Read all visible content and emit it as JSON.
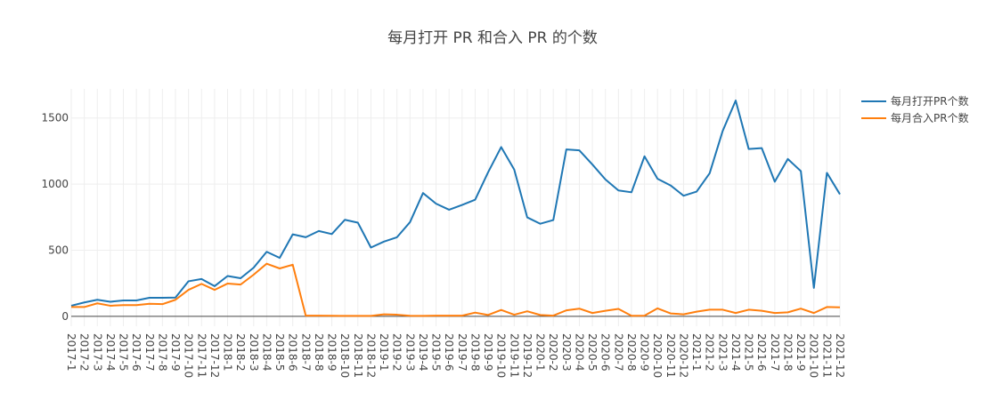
{
  "chart_data": {
    "type": "line",
    "title": "每月打开 PR 和合入 PR 的个数",
    "xlabel": "",
    "ylabel": "",
    "categories": [
      "2017-1",
      "2017-2",
      "2017-3",
      "2017-4",
      "2017-5",
      "2017-6",
      "2017-7",
      "2017-8",
      "2017-9",
      "2017-10",
      "2017-11",
      "2017-12",
      "2018-1",
      "2018-2",
      "2018-3",
      "2018-4",
      "2018-5",
      "2018-6",
      "2018-7",
      "2018-8",
      "2018-9",
      "2018-10",
      "2018-11",
      "2018-12",
      "2019-1",
      "2019-2",
      "2019-3",
      "2019-4",
      "2019-5",
      "2019-6",
      "2019-7",
      "2019-8",
      "2019-9",
      "2019-10",
      "2019-11",
      "2019-12",
      "2020-1",
      "2020-2",
      "2020-3",
      "2020-4",
      "2020-5",
      "2020-6",
      "2020-7",
      "2020-8",
      "2020-9",
      "2020-10",
      "2020-11",
      "2020-12",
      "2021-1",
      "2021-2",
      "2021-3",
      "2021-4",
      "2021-5",
      "2021-6",
      "2021-7",
      "2021-8",
      "2021-9",
      "2021-10",
      "2021-11",
      "2021-12"
    ],
    "series": [
      {
        "name": "每月打开PR个数",
        "color": "#1f77b4",
        "values": [
          80,
          105,
          125,
          110,
          120,
          120,
          140,
          140,
          142,
          265,
          282,
          228,
          305,
          288,
          368,
          488,
          442,
          620,
          598,
          645,
          622,
          730,
          708,
          520,
          565,
          598,
          712,
          932,
          852,
          806,
          842,
          882,
          1090,
          1280,
          1110,
          748,
          700,
          728,
          1262,
          1255,
          1148,
          1035,
          952,
          938,
          1210,
          1040,
          990,
          912,
          943,
          1082,
          1402,
          1632,
          1265,
          1272,
          1018,
          1190,
          1098,
          215,
          1085,
          923
        ]
      },
      {
        "name": "每月合入PR个数",
        "color": "#ff7f0e",
        "values": [
          70,
          70,
          98,
          80,
          85,
          85,
          95,
          92,
          125,
          200,
          245,
          200,
          248,
          240,
          315,
          398,
          362,
          390,
          5,
          5,
          4,
          3,
          3,
          3,
          15,
          12,
          4,
          3,
          5,
          5,
          5,
          28,
          10,
          48,
          12,
          38,
          10,
          5,
          45,
          58,
          25,
          42,
          56,
          4,
          5,
          60,
          22,
          15,
          35,
          50,
          50,
          25,
          50,
          42,
          25,
          30,
          58,
          25,
          70,
          68
        ]
      }
    ],
    "ylim": [
      -75,
      1720
    ],
    "yticks": [
      0,
      500,
      1000,
      1500
    ],
    "grid": true,
    "legend": "top-right"
  }
}
